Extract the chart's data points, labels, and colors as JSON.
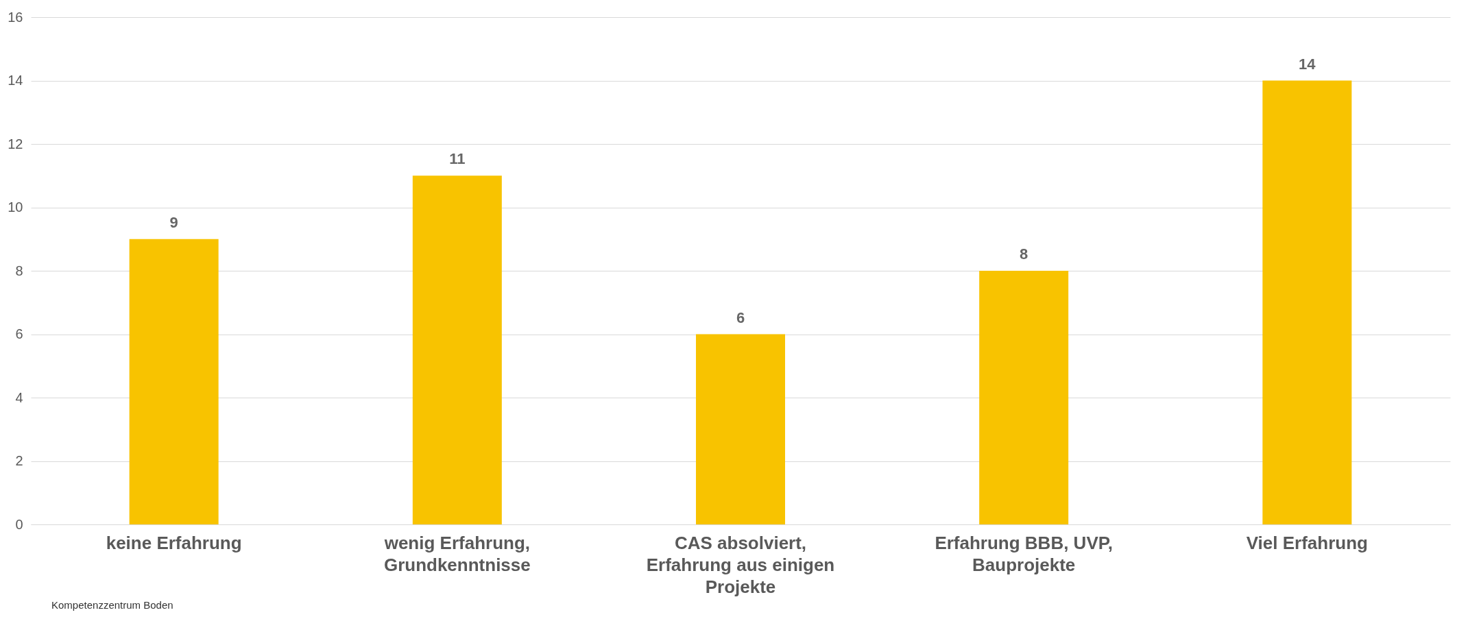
{
  "chart_data": {
    "type": "bar",
    "categories": [
      "keine Erfahrung",
      "wenig Erfahrung, Grundkenntnisse",
      "CAS absolviert, Erfahrung aus einigen Projekte",
      "Erfahrung BBB, UVP, Bauprojekte",
      "Viel Erfahrung"
    ],
    "values": [
      9,
      11,
      6,
      8,
      14
    ],
    "color": "#f8c300",
    "ylim": [
      0,
      16
    ],
    "yticks": [
      0,
      2,
      4,
      6,
      8,
      10,
      12,
      14,
      16
    ],
    "grid": "y",
    "data_labels": true,
    "annotations": [
      "Kompetenzzentrum Boden"
    ]
  }
}
